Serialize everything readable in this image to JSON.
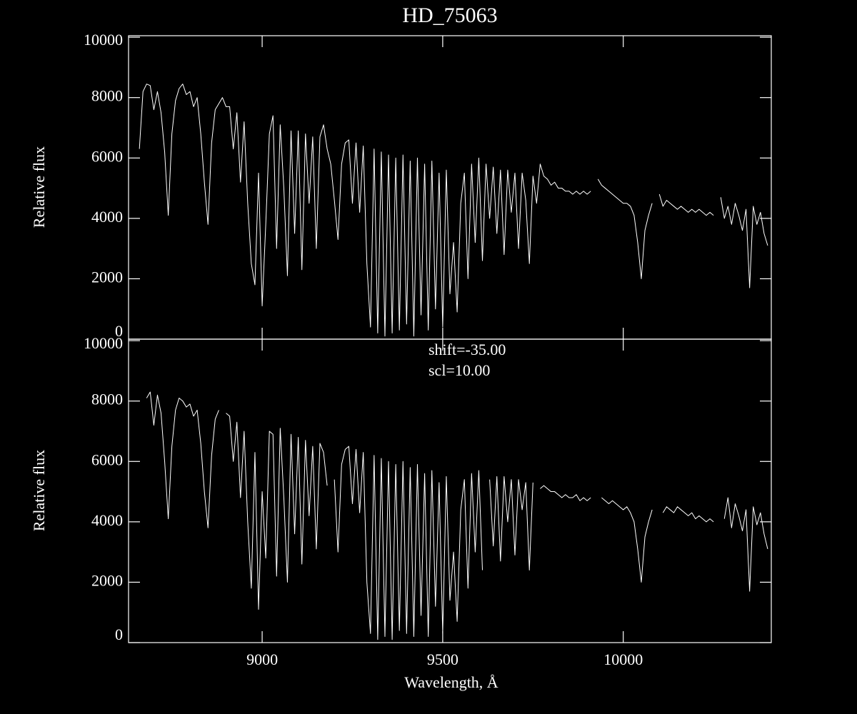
{
  "chart_data": [
    {
      "type": "line",
      "title": "HD_75063",
      "ylabel": "Relative flux",
      "xlim": [
        8630,
        10410
      ],
      "xticks": [
        9000,
        9500,
        10000
      ],
      "ylim": [
        0,
        10050
      ],
      "yticks": [
        0,
        2000,
        4000,
        6000,
        8000,
        10000
      ],
      "x": [
        8660,
        8670,
        8680,
        8690,
        8700,
        8710,
        8720,
        8730,
        8740,
        8750,
        8760,
        8770,
        8780,
        8790,
        8800,
        8810,
        8820,
        8830,
        8840,
        8850,
        8860,
        8870,
        8880,
        8890,
        8900,
        8910,
        8920,
        8930,
        8940,
        8950,
        8960,
        8970,
        8980,
        8990,
        9000,
        9010,
        9020,
        9030,
        9040,
        9050,
        9060,
        9070,
        9080,
        9090,
        9100,
        9110,
        9120,
        9130,
        9140,
        9150,
        9160,
        9170,
        9180,
        9190,
        9200,
        9210,
        9220,
        9230,
        9240,
        9250,
        9260,
        9270,
        9280,
        9290,
        9300,
        9310,
        9320,
        9330,
        9340,
        9350,
        9360,
        9370,
        9380,
        9390,
        9400,
        9410,
        9420,
        9430,
        9440,
        9450,
        9460,
        9470,
        9480,
        9490,
        9500,
        9510,
        9520,
        9530,
        9540,
        9550,
        9560,
        9570,
        9580,
        9590,
        9600,
        9610,
        9620,
        9630,
        9640,
        9650,
        9660,
        9670,
        9680,
        9690,
        9700,
        9710,
        9720,
        9730,
        9740,
        9750,
        9760,
        9770,
        9780,
        9790,
        9800,
        9810,
        9820,
        9830,
        9840,
        9850,
        9860,
        9870,
        9880,
        9890,
        9900,
        9910,
        9920,
        9930,
        9940,
        9950,
        9960,
        9970,
        9980,
        9990,
        10000,
        10010,
        10020,
        10030,
        10040,
        10050,
        10060,
        10070,
        10080,
        10090,
        10100,
        10110,
        10120,
        10130,
        10140,
        10150,
        10160,
        10170,
        10180,
        10190,
        10200,
        10210,
        10220,
        10230,
        10240,
        10250,
        10260,
        10270,
        10280,
        10290,
        10300,
        10310,
        10320,
        10330,
        10340,
        10350,
        10360,
        10370,
        10380,
        10390,
        10400
      ],
      "series": [
        {
          "color": "#ffffff",
          "values": [
            6300,
            8200,
            8450,
            8400,
            7600,
            8200,
            7500,
            6200,
            4100,
            6800,
            7900,
            8300,
            8450,
            8100,
            8200,
            7700,
            8000,
            6800,
            5200,
            3800,
            6500,
            7600,
            7800,
            8000,
            7700,
            7700,
            6300,
            7500,
            5200,
            7200,
            4500,
            2500,
            1800,
            5500,
            1100,
            3800,
            6800,
            7400,
            3000,
            7100,
            5000,
            2100,
            6900,
            3500,
            6900,
            2300,
            6800,
            4500,
            6700,
            3000,
            6700,
            7100,
            6300,
            5800,
            4600,
            3300,
            5800,
            6500,
            6600,
            4500,
            6500,
            4200,
            6400,
            2500,
            400,
            6300,
            200,
            6200,
            100,
            6100,
            200,
            6000,
            300,
            6100,
            500,
            5900,
            100,
            6000,
            800,
            5800,
            300,
            5900,
            1000,
            5500,
            400,
            5600,
            1500,
            3200,
            900,
            4500,
            5500,
            2000,
            5800,
            3200,
            6000,
            2600,
            5800,
            4000,
            5700,
            3500,
            5600,
            2800,
            5600,
            4200,
            5500,
            3000,
            5500,
            4600,
            2500,
            5400,
            4500,
            5800,
            5400,
            5300,
            5100,
            5200,
            5000,
            5000,
            4900,
            4900,
            4800,
            4900,
            4800,
            4900,
            4800,
            4900,
            null,
            5300,
            5100,
            5000,
            4900,
            4800,
            4700,
            4600,
            4500,
            4500,
            4400,
            4100,
            3200,
            2000,
            3600,
            4100,
            4500,
            null,
            4800,
            4400,
            4600,
            4500,
            4400,
            4300,
            4400,
            4300,
            4200,
            4300,
            4200,
            4300,
            4200,
            4100,
            4200,
            4100,
            null,
            4700,
            4000,
            4400,
            3800,
            4500,
            4100,
            3600,
            4300,
            1700,
            4400,
            3800,
            4200,
            3500,
            3100
          ]
        }
      ]
    },
    {
      "type": "line",
      "xlabel": "Wavelength, Å",
      "ylabel": "Relative flux",
      "annotations": [
        "shift=-35.00",
        "scl=10.00"
      ],
      "xlim": [
        8630,
        10410
      ],
      "xticks": [
        9000,
        9500,
        10000
      ],
      "ylim": [
        0,
        10050
      ],
      "yticks": [
        0,
        2000,
        4000,
        6000,
        8000,
        10000
      ],
      "x": [
        8660,
        8670,
        8680,
        8690,
        8700,
        8710,
        8720,
        8730,
        8740,
        8750,
        8760,
        8770,
        8780,
        8790,
        8800,
        8810,
        8820,
        8830,
        8840,
        8850,
        8860,
        8870,
        8880,
        8890,
        8900,
        8910,
        8920,
        8930,
        8940,
        8950,
        8960,
        8970,
        8980,
        8990,
        9000,
        9010,
        9020,
        9030,
        9040,
        9050,
        9060,
        9070,
        9080,
        9090,
        9100,
        9110,
        9120,
        9130,
        9140,
        9150,
        9160,
        9170,
        9180,
        9190,
        9200,
        9210,
        9220,
        9230,
        9240,
        9250,
        9260,
        9270,
        9280,
        9290,
        9300,
        9310,
        9320,
        9330,
        9340,
        9350,
        9360,
        9370,
        9380,
        9390,
        9400,
        9410,
        9420,
        9430,
        9440,
        9450,
        9460,
        9470,
        9480,
        9490,
        9500,
        9510,
        9520,
        9530,
        9540,
        9550,
        9560,
        9570,
        9580,
        9590,
        9600,
        9610,
        9620,
        9630,
        9640,
        9650,
        9660,
        9670,
        9680,
        9690,
        9700,
        9710,
        9720,
        9730,
        9740,
        9750,
        9760,
        9770,
        9780,
        9790,
        9800,
        9810,
        9820,
        9830,
        9840,
        9850,
        9860,
        9870,
        9880,
        9890,
        9900,
        9910,
        9920,
        9930,
        9940,
        9950,
        9960,
        9970,
        9980,
        9990,
        10000,
        10010,
        10020,
        10030,
        10040,
        10050,
        10060,
        10070,
        10080,
        10090,
        10100,
        10110,
        10120,
        10130,
        10140,
        10150,
        10160,
        10170,
        10180,
        10190,
        10200,
        10210,
        10220,
        10230,
        10240,
        10250,
        10260,
        10270,
        10280,
        10290,
        10300,
        10310,
        10320,
        10330,
        10340,
        10350,
        10360,
        10370,
        10380,
        10390,
        10400
      ],
      "series": [
        {
          "color": "#ffffff",
          "values": [
            null,
            null,
            8100,
            8300,
            7200,
            8200,
            7600,
            6000,
            4100,
            6500,
            7700,
            8100,
            8000,
            7800,
            7900,
            7500,
            7700,
            6600,
            5000,
            3800,
            6200,
            7400,
            7700,
            null,
            7600,
            7500,
            6000,
            7300,
            4800,
            7000,
            4000,
            1800,
            6300,
            1100,
            5000,
            2800,
            7000,
            6900,
            2200,
            7100,
            4800,
            2000,
            6900,
            3600,
            6800,
            2600,
            6700,
            4200,
            6500,
            3100,
            6600,
            6300,
            5200,
            null,
            5400,
            3000,
            5900,
            6400,
            6500,
            4600,
            6400,
            4300,
            6300,
            2000,
            300,
            6200,
            100,
            6100,
            200,
            6000,
            100,
            5900,
            400,
            6000,
            300,
            5800,
            200,
            5900,
            900,
            5600,
            200,
            5700,
            1200,
            5300,
            300,
            5500,
            1400,
            3000,
            700,
            4400,
            5400,
            1800,
            5600,
            3000,
            5700,
            2400,
            null,
            5400,
            3200,
            5500,
            2700,
            5500,
            4000,
            5400,
            2900,
            5400,
            4400,
            5300,
            2400,
            5300,
            null,
            5100,
            5200,
            5100,
            5000,
            5000,
            4900,
            4800,
            4900,
            4800,
            4800,
            4900,
            4700,
            4800,
            4700,
            4800,
            null,
            null,
            4800,
            4700,
            4600,
            4700,
            4600,
            4500,
            4400,
            4500,
            4300,
            4000,
            3100,
            2000,
            3500,
            4000,
            4400,
            null,
            null,
            4300,
            4500,
            4400,
            4300,
            4500,
            4400,
            4300,
            4200,
            4300,
            4100,
            4200,
            4100,
            4000,
            4100,
            4000,
            null,
            null,
            4100,
            4800,
            3800,
            4600,
            4200,
            3700,
            4400,
            1700,
            4500,
            3900,
            4300,
            3600,
            3100
          ]
        }
      ]
    }
  ]
}
